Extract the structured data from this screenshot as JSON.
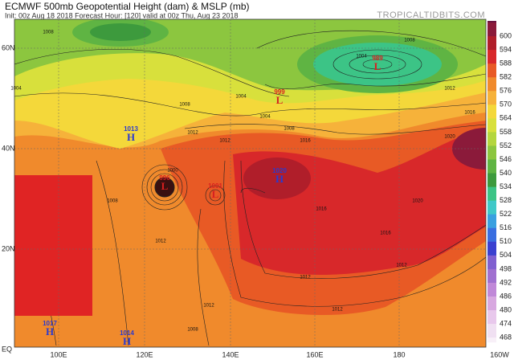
{
  "header": {
    "title": "ECMWF 500mb Geopotential Height (dam) & MSLP (mb)",
    "subtitle": "Init: 00z Aug 18 2018   Forecast Hour: [120]   valid at 00z Thu, Aug 23 2018",
    "watermark": "TROPICALTIDBITS.COM"
  },
  "map": {
    "lat_labels": [
      "60N",
      "40N",
      "20N",
      "EQ"
    ],
    "lon_labels": [
      "100E",
      "120E",
      "140E",
      "160E",
      "180",
      "160W"
    ],
    "centers": [
      {
        "letter": "H",
        "value": "1013"
      },
      {
        "letter": "H",
        "value": "1020"
      },
      {
        "letter": "L",
        "value": "999"
      },
      {
        "letter": "L",
        "value": "989"
      },
      {
        "letter": "H",
        "value": "1017"
      },
      {
        "letter": "H",
        "value": "1014"
      },
      {
        "letter": "L",
        "value": "996"
      },
      {
        "letter": "L",
        "value": "1001"
      }
    ],
    "contour_labels": [
      "1008",
      "1004",
      "1008",
      "1012",
      "1004",
      "1008",
      "1016",
      "1004",
      "1008",
      "1012",
      "1016",
      "1020",
      "1012",
      "1020",
      "1016",
      "1012",
      "1016",
      "1012",
      "1012",
      "1008",
      "1012",
      "1012",
      "1008",
      "1004",
      "1000"
    ]
  },
  "colorbar": {
    "levels": [
      600,
      594,
      588,
      582,
      576,
      570,
      564,
      558,
      552,
      546,
      540,
      534,
      528,
      522,
      516,
      510,
      504,
      498,
      492,
      486,
      480,
      474,
      468
    ],
    "colors": [
      "#8b1a3a",
      "#b01e2a",
      "#d8282a",
      "#e85a25",
      "#f08a2c",
      "#f6b23a",
      "#f4d83a",
      "#d8e03c",
      "#b4d63e",
      "#8cc63f",
      "#5fb443",
      "#3d9a3d",
      "#3cc486",
      "#40c8c8",
      "#3aa0e0",
      "#3a6ee0",
      "#3a40d0",
      "#8060d0",
      "#a070d0",
      "#c088d8",
      "#d8a8e0",
      "#e8c8ec",
      "#f0e0f2"
    ]
  }
}
